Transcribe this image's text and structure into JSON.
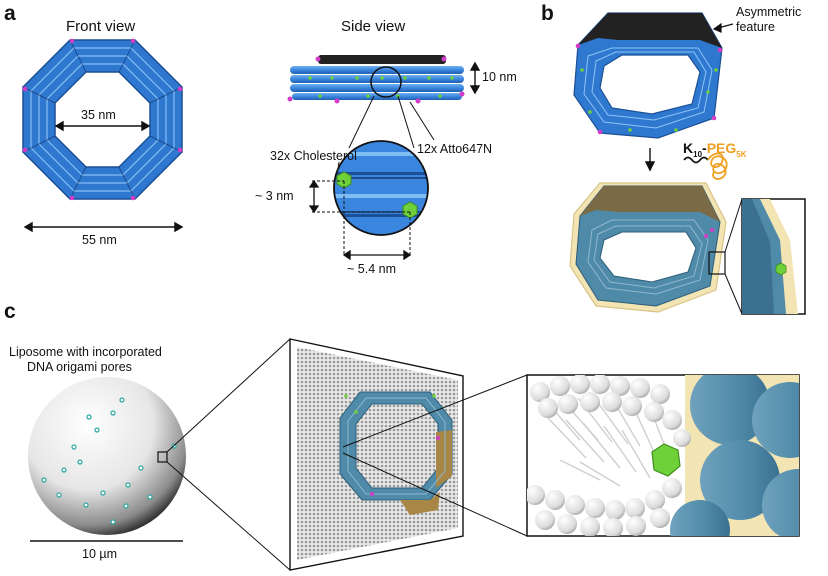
{
  "panels": {
    "a": "a",
    "b": "b",
    "c": "c"
  },
  "panel_a": {
    "front_title": "Front view",
    "side_title": "Side view",
    "inner_dim": "35 nm",
    "outer_dim": "55 nm",
    "height_dim": "10 nm",
    "cholesterol_label": "32x Cholesterol",
    "atto_label": "12x Atto647N",
    "bundle_spacing": "~ 3 nm",
    "bundle_width": "~ 5.4 nm"
  },
  "panel_b": {
    "asym_line1": "Asymmetric",
    "asym_line2": "feature",
    "k_label": "K",
    "k_sub": "10",
    "dash": "-",
    "peg_label": "PEG",
    "peg_sub": "5K"
  },
  "panel_c": {
    "liposome_line1": "Liposome with incorporated",
    "liposome_line2": "DNA origami pores",
    "scale_label": "10 µm"
  },
  "colors": {
    "dna_blue": "#3a86de",
    "dna_blue_dark": "#1f5fb0",
    "dna_black": "#222222",
    "cholesterol_green": "#6fd13a",
    "dye_magenta": "#d23cc8",
    "peg_orange": "#f0a020",
    "coated_teal": "#4f8aa8",
    "coated_tan": "#a88645"
  },
  "icons": {
    "cholesterol": "green-hexagon-icon",
    "dye": "magenta-dot-icon",
    "peg": "orange-coil-icon"
  }
}
